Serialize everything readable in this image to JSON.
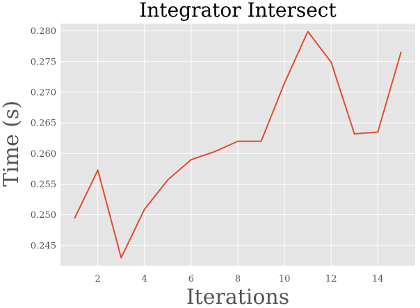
{
  "chart_data": {
    "type": "line",
    "title": "Integrator Intersect",
    "xlabel": "Iterations",
    "ylabel": "Time (s)",
    "xlim": [
      0.4,
      15.6
    ],
    "ylim": [
      0.2417,
      0.2812
    ],
    "xticks": [
      2,
      4,
      6,
      8,
      10,
      12,
      14
    ],
    "yticks": [
      0.245,
      0.25,
      0.255,
      0.26,
      0.265,
      0.27,
      0.275,
      0.28
    ],
    "ytick_labels": [
      "0.245",
      "0.250",
      "0.255",
      "0.260",
      "0.265",
      "0.270",
      "0.275",
      "0.280"
    ],
    "grid": true,
    "series": [
      {
        "color": "#E24A33",
        "x": [
          1,
          2,
          3,
          4,
          5,
          6,
          7,
          8,
          9,
          10,
          11,
          12,
          13,
          14,
          15
        ],
        "y": [
          0.2494,
          0.2573,
          0.243,
          0.2509,
          0.2557,
          0.259,
          0.2603,
          0.262,
          0.262,
          0.2715,
          0.2799,
          0.2749,
          0.2632,
          0.2635,
          0.2766
        ]
      }
    ]
  },
  "style": {
    "panel_bg": "#E5E5E5",
    "grid_color": "#FFFFFF"
  }
}
